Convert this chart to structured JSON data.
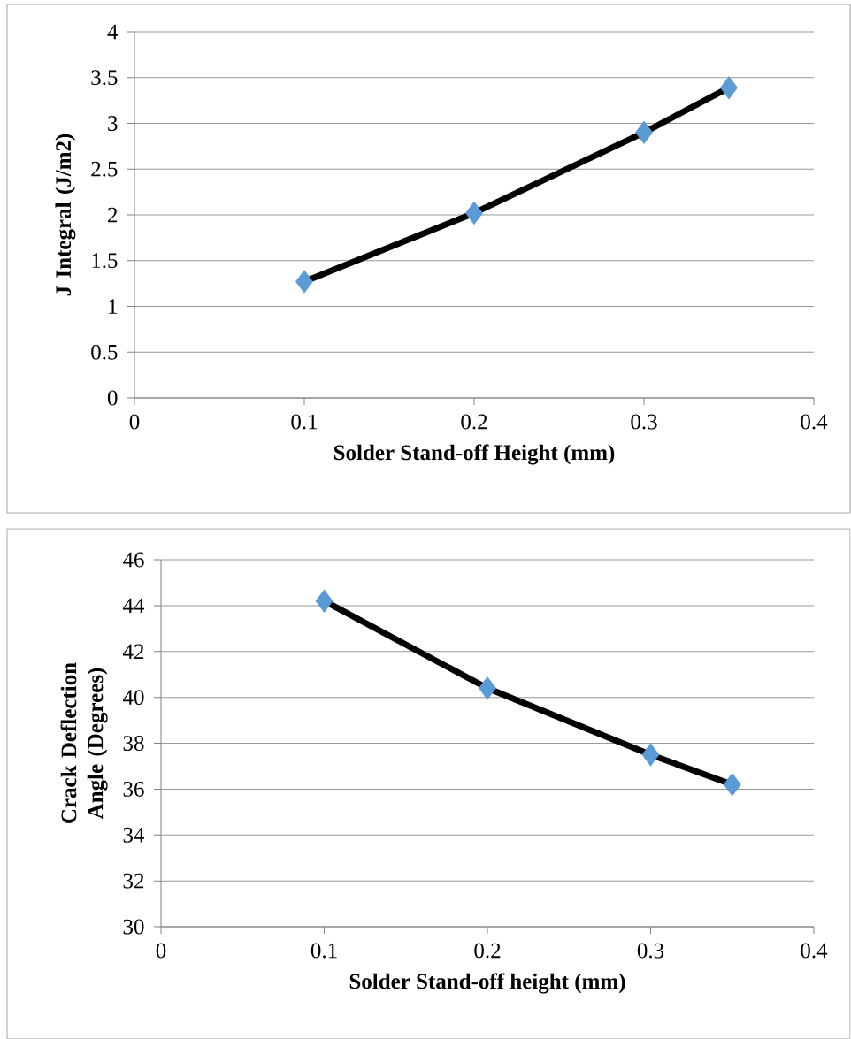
{
  "chart_data": [
    {
      "type": "line",
      "xlabel": "Solder Stand-off Height (mm)",
      "ylabel": "J Integral (J/m2)",
      "x": [
        0.1,
        0.2,
        0.3,
        0.35
      ],
      "values": [
        1.27,
        2.02,
        2.9,
        3.39
      ],
      "color": "#000000",
      "colors": [
        "#5b9bd5",
        "#5b9bd5",
        "#5b9bd5",
        "#5b9bd5"
      ],
      "marker": "diamond",
      "grid": "y",
      "xlim": [
        0,
        0.4
      ],
      "xticks": [
        0,
        0.1,
        0.2,
        0.3,
        0.4
      ],
      "ylim": [
        0,
        4
      ],
      "yticks": [
        0,
        0.5,
        1,
        1.5,
        2,
        2.5,
        3,
        3.5,
        4
      ]
    },
    {
      "type": "line",
      "xlabel": "Solder Stand-off height (mm)",
      "ylabel": "Crack Deflection Angle (Degrees)",
      "x": [
        0.1,
        0.2,
        0.3,
        0.35
      ],
      "values": [
        44.2,
        40.4,
        37.5,
        36.2
      ],
      "color": "#000000",
      "colors": [
        "#5b9bd5",
        "#5b9bd5",
        "#5b9bd5",
        "#5b9bd5"
      ],
      "marker": "diamond",
      "grid": "y",
      "xlim": [
        0,
        0.4
      ],
      "xticks": [
        0,
        0.1,
        0.2,
        0.3,
        0.4
      ],
      "ylim": [
        30,
        46
      ],
      "yticks": [
        30,
        32,
        34,
        36,
        38,
        40,
        42,
        44,
        46
      ]
    }
  ]
}
